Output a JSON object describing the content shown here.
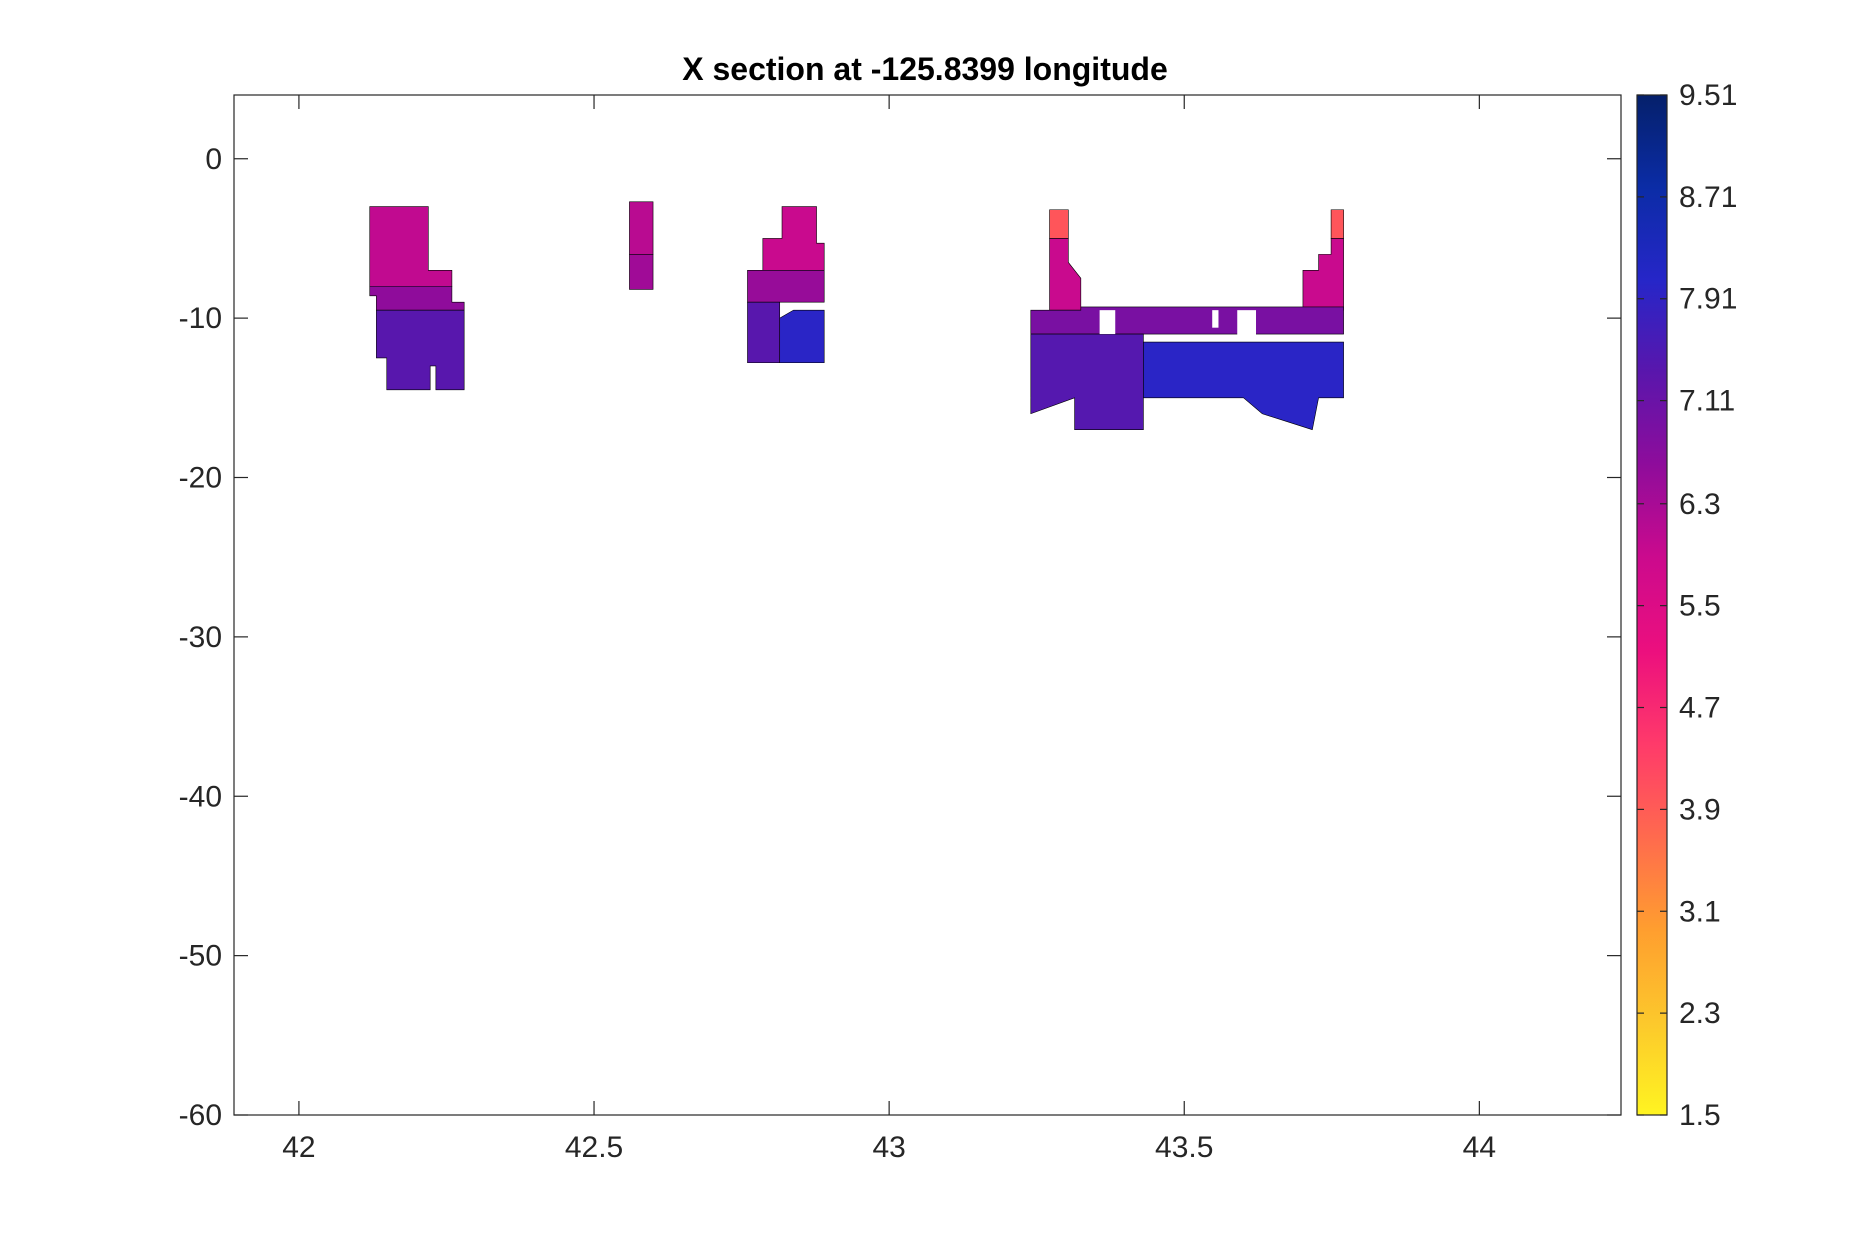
{
  "chart_data": {
    "type": "contour",
    "title": "X section at -125.8399 longitude",
    "xlabel": "",
    "ylabel": "",
    "xlim": [
      41.89,
      44.24
    ],
    "ylim": [
      -60,
      4
    ],
    "x_ticks": [
      42,
      42.5,
      43,
      43.5,
      44
    ],
    "x_tick_labels": [
      "42",
      "42.5",
      "43",
      "43.5",
      "44"
    ],
    "y_ticks": [
      0,
      -10,
      -20,
      -30,
      -40,
      -50,
      -60
    ],
    "y_tick_labels": [
      "0",
      "-10",
      "-20",
      "-30",
      "-40",
      "-50",
      "-60"
    ],
    "colorbar": {
      "range": [
        1.5,
        9.51
      ],
      "ticks": [
        9.51,
        8.71,
        7.91,
        7.11,
        6.3,
        5.5,
        4.7,
        3.9,
        3.1,
        2.3,
        1.5
      ],
      "tick_labels": [
        "9.51",
        "8.71",
        "7.91",
        "7.11",
        "6.3",
        "5.5",
        "4.7",
        "3.9",
        "3.1",
        "2.3",
        "1.5"
      ],
      "colormap": [
        "#fff421",
        "#fcc82c",
        "#ff9e2f",
        "#ff6a4e",
        "#ff3a6a",
        "#ec0f7e",
        "#cc0a8d",
        "#8f0c9b",
        "#5a16ac",
        "#2626c8",
        "#0b2ca6",
        "#05206b"
      ]
    },
    "grid": false,
    "legend": "none",
    "regions": [
      {
        "name": "region-1",
        "x_range": [
          42.12,
          42.28
        ],
        "depth_range": [
          -3,
          -14.5
        ],
        "layers": [
          {
            "top": -3,
            "bottom": -8,
            "value": 6.0
          },
          {
            "top": -8,
            "bottom": -9.5,
            "value": 6.6
          },
          {
            "top": -9.5,
            "bottom": -14.5,
            "value": 7.35
          }
        ]
      },
      {
        "name": "region-2",
        "x_range": [
          42.56,
          42.6
        ],
        "depth_range": [
          -2.7,
          -8.2
        ],
        "layers": [
          {
            "top": -2.7,
            "bottom": -6,
            "value": 6.1
          },
          {
            "top": -6,
            "bottom": -8.2,
            "value": 6.4
          }
        ]
      },
      {
        "name": "region-3",
        "x_range": [
          42.76,
          42.89
        ],
        "depth_range": [
          -3,
          -12.8
        ],
        "layers": [
          {
            "top": -3,
            "bottom": -7,
            "value": 5.9
          },
          {
            "top": -7,
            "bottom": -9,
            "value": 6.5
          },
          {
            "top": -9,
            "bottom": -12.8,
            "value": 7.35
          },
          {
            "top": -9.5,
            "bottom": -12.8,
            "value": 8.0
          }
        ]
      },
      {
        "name": "region-4",
        "x_range": [
          43.24,
          43.77
        ],
        "depth_range": [
          -3.2,
          -17
        ],
        "layers": [
          {
            "top": -3.2,
            "bottom": -5,
            "value": 4.0
          },
          {
            "top": -5,
            "bottom": -9.5,
            "value": 5.9
          },
          {
            "top": -9.5,
            "bottom": -11,
            "value": 6.9
          },
          {
            "top": -11,
            "bottom": -17,
            "value": 7.4
          },
          {
            "top": -11.5,
            "bottom": -17,
            "value": 8.0
          }
        ]
      }
    ]
  }
}
